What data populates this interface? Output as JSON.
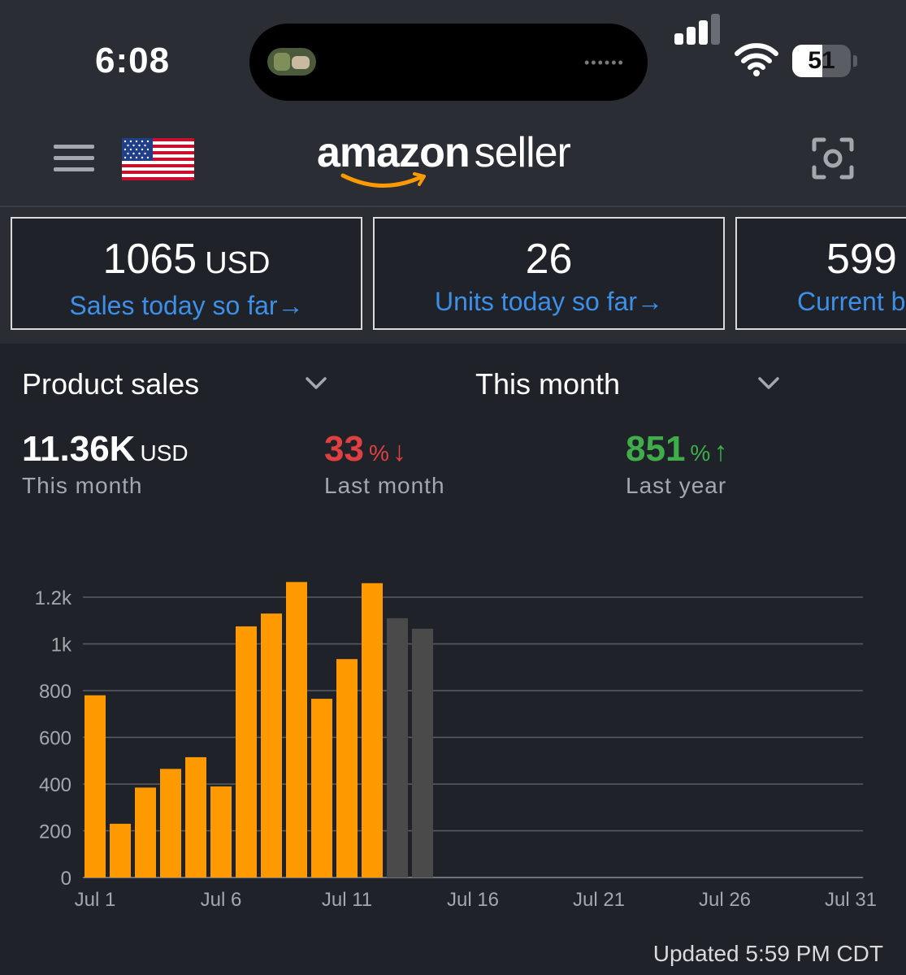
{
  "status_bar": {
    "time": "6:08",
    "battery": "51",
    "battery_level": 0.51
  },
  "header": {
    "menu_icon": "hamburger-menu-icon",
    "flag_icon": "us-flag-icon",
    "logo_primary": "amazon",
    "logo_secondary": "seller",
    "scan_icon": "camera-scan-icon"
  },
  "cards": [
    {
      "value": "1065",
      "unit": "USD",
      "label": "Sales today so far→"
    },
    {
      "value": "26",
      "unit": "",
      "label": "Units today so far→"
    },
    {
      "value": "599",
      "unit": "",
      "label": "Current b"
    }
  ],
  "filters": {
    "metric": "Product sales",
    "period": "This month"
  },
  "stats": {
    "current": {
      "value": "11.36K",
      "unit": "USD",
      "label": "This month"
    },
    "last_month": {
      "value": "33",
      "unit": "%",
      "arrow": "↓",
      "label": "Last month",
      "color": "#e04040"
    },
    "last_year": {
      "value": "851",
      "unit": "%",
      "arrow": "↑",
      "label": "Last year",
      "color": "#3fae4a"
    }
  },
  "chart_data": {
    "type": "bar",
    "x": [
      1,
      2,
      3,
      4,
      5,
      6,
      7,
      8,
      9,
      10,
      11,
      12,
      13,
      14
    ],
    "values": [
      780,
      230,
      385,
      465,
      515,
      390,
      1075,
      1130,
      1265,
      765,
      935,
      1260,
      1110,
      1065
    ],
    "colors": [
      "#ff9900",
      "#ff9900",
      "#ff9900",
      "#ff9900",
      "#ff9900",
      "#ff9900",
      "#ff9900",
      "#ff9900",
      "#ff9900",
      "#ff9900",
      "#ff9900",
      "#ff9900",
      "#4a4a4a",
      "#4a4a4a"
    ],
    "x_domain": [
      1,
      31
    ],
    "x_ticks": [
      {
        "day": 1,
        "label": "Jul 1"
      },
      {
        "day": 6,
        "label": "Jul 6"
      },
      {
        "day": 11,
        "label": "Jul 11"
      },
      {
        "day": 16,
        "label": "Jul 16"
      },
      {
        "day": 21,
        "label": "Jul 21"
      },
      {
        "day": 26,
        "label": "Jul 26"
      },
      {
        "day": 31,
        "label": "Jul 31"
      }
    ],
    "y_ticks": [
      {
        "value": 0,
        "label": "0"
      },
      {
        "value": 200,
        "label": "200"
      },
      {
        "value": 400,
        "label": "400"
      },
      {
        "value": 600,
        "label": "600"
      },
      {
        "value": 800,
        "label": "800"
      },
      {
        "value": 1000,
        "label": "1k"
      },
      {
        "value": 1200,
        "label": "1.2k"
      }
    ],
    "ylim": [
      0,
      1200
    ],
    "grid": true
  },
  "footer": {
    "updated": "Updated 5:59 PM CDT"
  }
}
